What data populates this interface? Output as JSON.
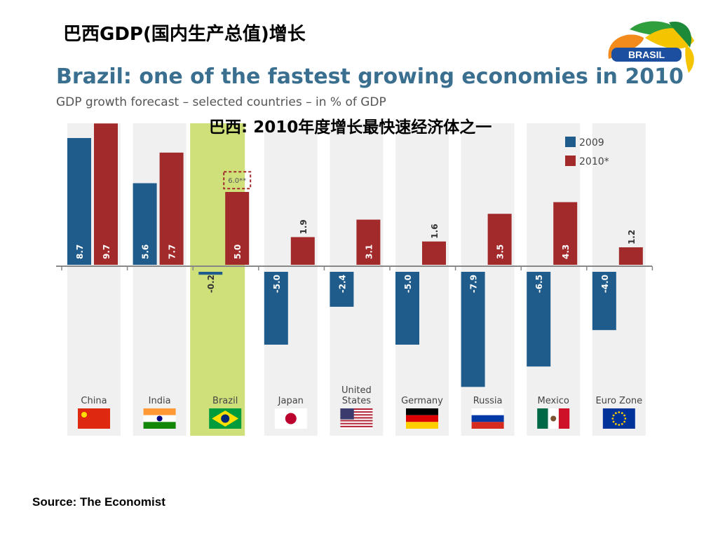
{
  "slide": {
    "title": "巴西GDP(国内生产总值)增长",
    "overlay_title": "巴西: 2010年度增长最快速经济体之一",
    "source": "Source: The Economist",
    "logo_text": "BRASIL"
  },
  "chart_data": {
    "type": "bar",
    "title": "Brazil: one of the fastest growing economies in 2010",
    "subtitle": "GDP growth forecast – selected countries – in % of GDP",
    "categories": [
      "China",
      "India",
      "Brazil",
      "Japan",
      "United States",
      "Germany",
      "Russia",
      "Mexico",
      "Euro Zone"
    ],
    "series": [
      {
        "name": "2009",
        "color": "#1f5c8c",
        "values": [
          8.7,
          5.6,
          -0.2,
          -5.0,
          -2.4,
          -5.0,
          -7.9,
          -6.5,
          -4.0
        ]
      },
      {
        "name": "2010*",
        "color": "#a32a2a",
        "values": [
          9.7,
          7.7,
          5.0,
          1.9,
          3.1,
          1.6,
          3.5,
          4.3,
          1.2
        ]
      }
    ],
    "data_labels": {
      "2009": [
        "8.7",
        "5.6",
        "-0.2",
        "-5.0",
        "-2.4",
        "-5.0",
        "-7.9",
        "-6.5",
        "-4.0"
      ],
      "2010": [
        "9.7",
        "7.7",
        "5.0",
        "1.9",
        "3.1",
        "1.6",
        "3.5",
        "4.3",
        "1.2"
      ]
    },
    "annotation": {
      "category": "Brazil",
      "series": "2010*",
      "value": 6.0,
      "label": "6.0**"
    },
    "highlight_category": "Brazil",
    "highlight_color": "#cfe07a",
    "legend": {
      "position": "top-right",
      "entries": [
        "2009",
        "2010*"
      ]
    },
    "ylim": [
      -8.5,
      10
    ],
    "grid": false
  }
}
